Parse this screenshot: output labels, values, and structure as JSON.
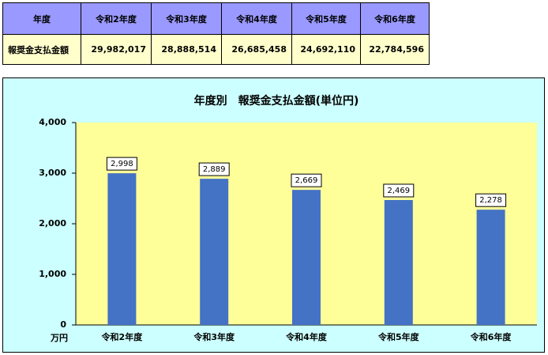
{
  "table": {
    "header": [
      "年度",
      "令和2年度",
      "令和3年度",
      "令和4年度",
      "令和5年度",
      "令和6年度"
    ],
    "rows": [
      [
        "報奨金支払金額",
        "29,982,017",
        "28,888,514",
        "26,685,458",
        "24,692,110",
        "22,784,596"
      ]
    ]
  },
  "chart_data": {
    "type": "bar",
    "title": "年度別　報奨金支払金額(単位円)",
    "y_unit": "万円",
    "categories": [
      "令和2年度",
      "令和3年度",
      "令和4年度",
      "令和5年度",
      "令和6年度"
    ],
    "values": [
      2998,
      2889,
      2669,
      2469,
      2278
    ],
    "value_labels": [
      "2,998",
      "2,889",
      "2,669",
      "2,469",
      "2,278"
    ],
    "color": "#4472c4",
    "ylim": [
      0,
      4000
    ],
    "yticks": [
      0,
      {
        "value": 1000,
        "label": "1,000"
      },
      {
        "value": 2000,
        "label": "2,000"
      },
      {
        "value": 3000,
        "label": "3,000"
      },
      {
        "value": 4000,
        "label": "4,000"
      }
    ]
  }
}
